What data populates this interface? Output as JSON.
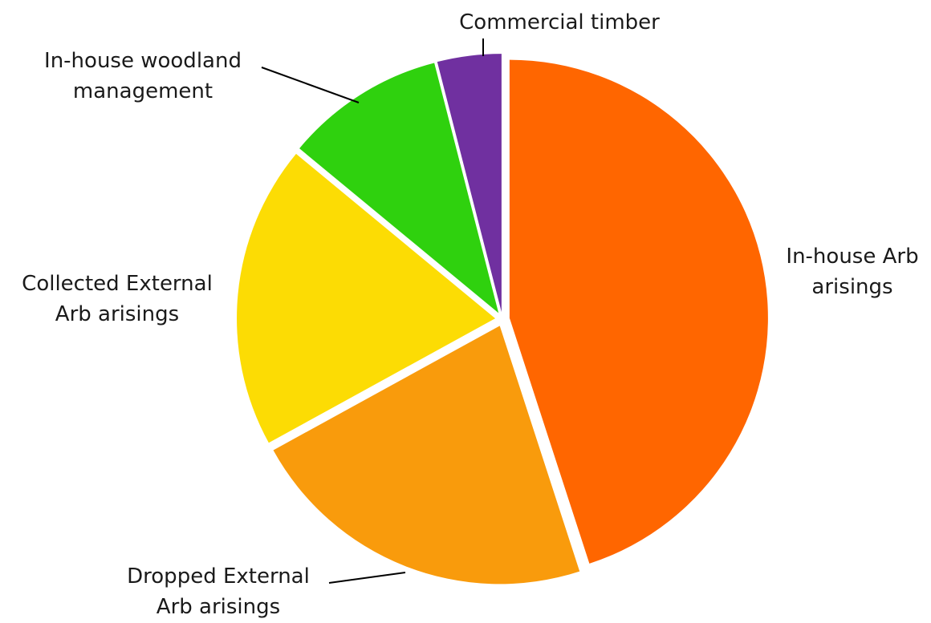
{
  "chart_data": {
    "type": "pie",
    "title": "",
    "slices": [
      {
        "label": "In-house Arb arisings",
        "label_lines": [
          "In-house Arb",
          "arisings"
        ],
        "value": 45,
        "color": "#ff6600"
      },
      {
        "label": "Dropped External Arb arisings",
        "label_lines": [
          "Dropped External",
          "Arb arisings"
        ],
        "value": 22,
        "color": "#f99b0c"
      },
      {
        "label": "Collected External Arb arisings",
        "label_lines": [
          "Collected External",
          "Arb arisings"
        ],
        "value": 19,
        "color": "#fcdc04"
      },
      {
        "label": "In-house woodland management",
        "label_lines": [
          "In-house woodland",
          "management"
        ],
        "value": 10,
        "color": "#2fd10e"
      },
      {
        "label": "Commercial timber",
        "label_lines": [
          "Commercial timber"
        ],
        "value": 4,
        "color": "#7030a0"
      }
    ]
  }
}
